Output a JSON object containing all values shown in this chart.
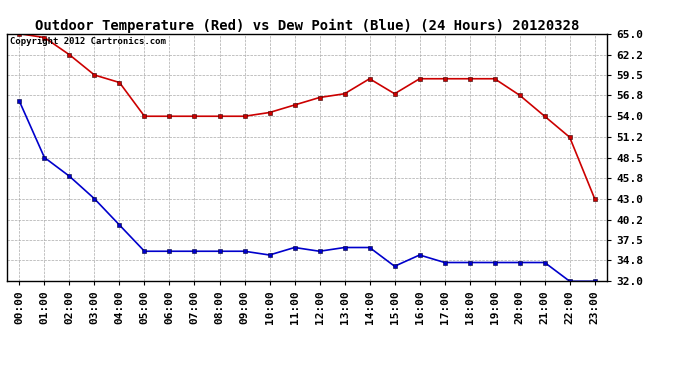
{
  "title": "Outdoor Temperature (Red) vs Dew Point (Blue) (24 Hours) 20120328",
  "copyright": "Copyright 2012 Cartronics.com",
  "x_labels": [
    "00:00",
    "01:00",
    "02:00",
    "03:00",
    "04:00",
    "05:00",
    "06:00",
    "07:00",
    "08:00",
    "09:00",
    "10:00",
    "11:00",
    "12:00",
    "13:00",
    "14:00",
    "15:00",
    "16:00",
    "17:00",
    "18:00",
    "19:00",
    "20:00",
    "21:00",
    "22:00",
    "23:00"
  ],
  "temp_red": [
    65.0,
    64.5,
    62.2,
    59.5,
    58.5,
    54.0,
    54.0,
    54.0,
    54.0,
    54.0,
    54.5,
    55.5,
    56.5,
    57.0,
    59.0,
    57.0,
    59.0,
    59.0,
    59.0,
    59.0,
    56.8,
    54.0,
    51.2,
    43.0
  ],
  "dew_blue": [
    56.0,
    48.5,
    46.0,
    43.0,
    39.5,
    36.0,
    36.0,
    36.0,
    36.0,
    36.0,
    35.5,
    36.5,
    36.0,
    36.5,
    36.5,
    34.0,
    35.5,
    34.5,
    34.5,
    34.5,
    34.5,
    34.5,
    32.0,
    32.0
  ],
  "ylim": [
    32.0,
    65.0
  ],
  "yticks": [
    32.0,
    34.8,
    37.5,
    40.2,
    43.0,
    45.8,
    48.5,
    51.2,
    54.0,
    56.8,
    59.5,
    62.2,
    65.0
  ],
  "ytick_labels": [
    "32.0",
    "34.8",
    "37.5",
    "40.2",
    "43.0",
    "45.8",
    "48.5",
    "51.2",
    "54.0",
    "56.8",
    "59.5",
    "62.2",
    "65.0"
  ],
  "red_color": "#cc0000",
  "blue_color": "#0000cc",
  "bg_color": "#ffffff",
  "plot_bg_color": "#ffffff",
  "grid_color": "#aaaaaa",
  "title_fontsize": 10,
  "tick_fontsize": 8,
  "copyright_fontsize": 6.5
}
